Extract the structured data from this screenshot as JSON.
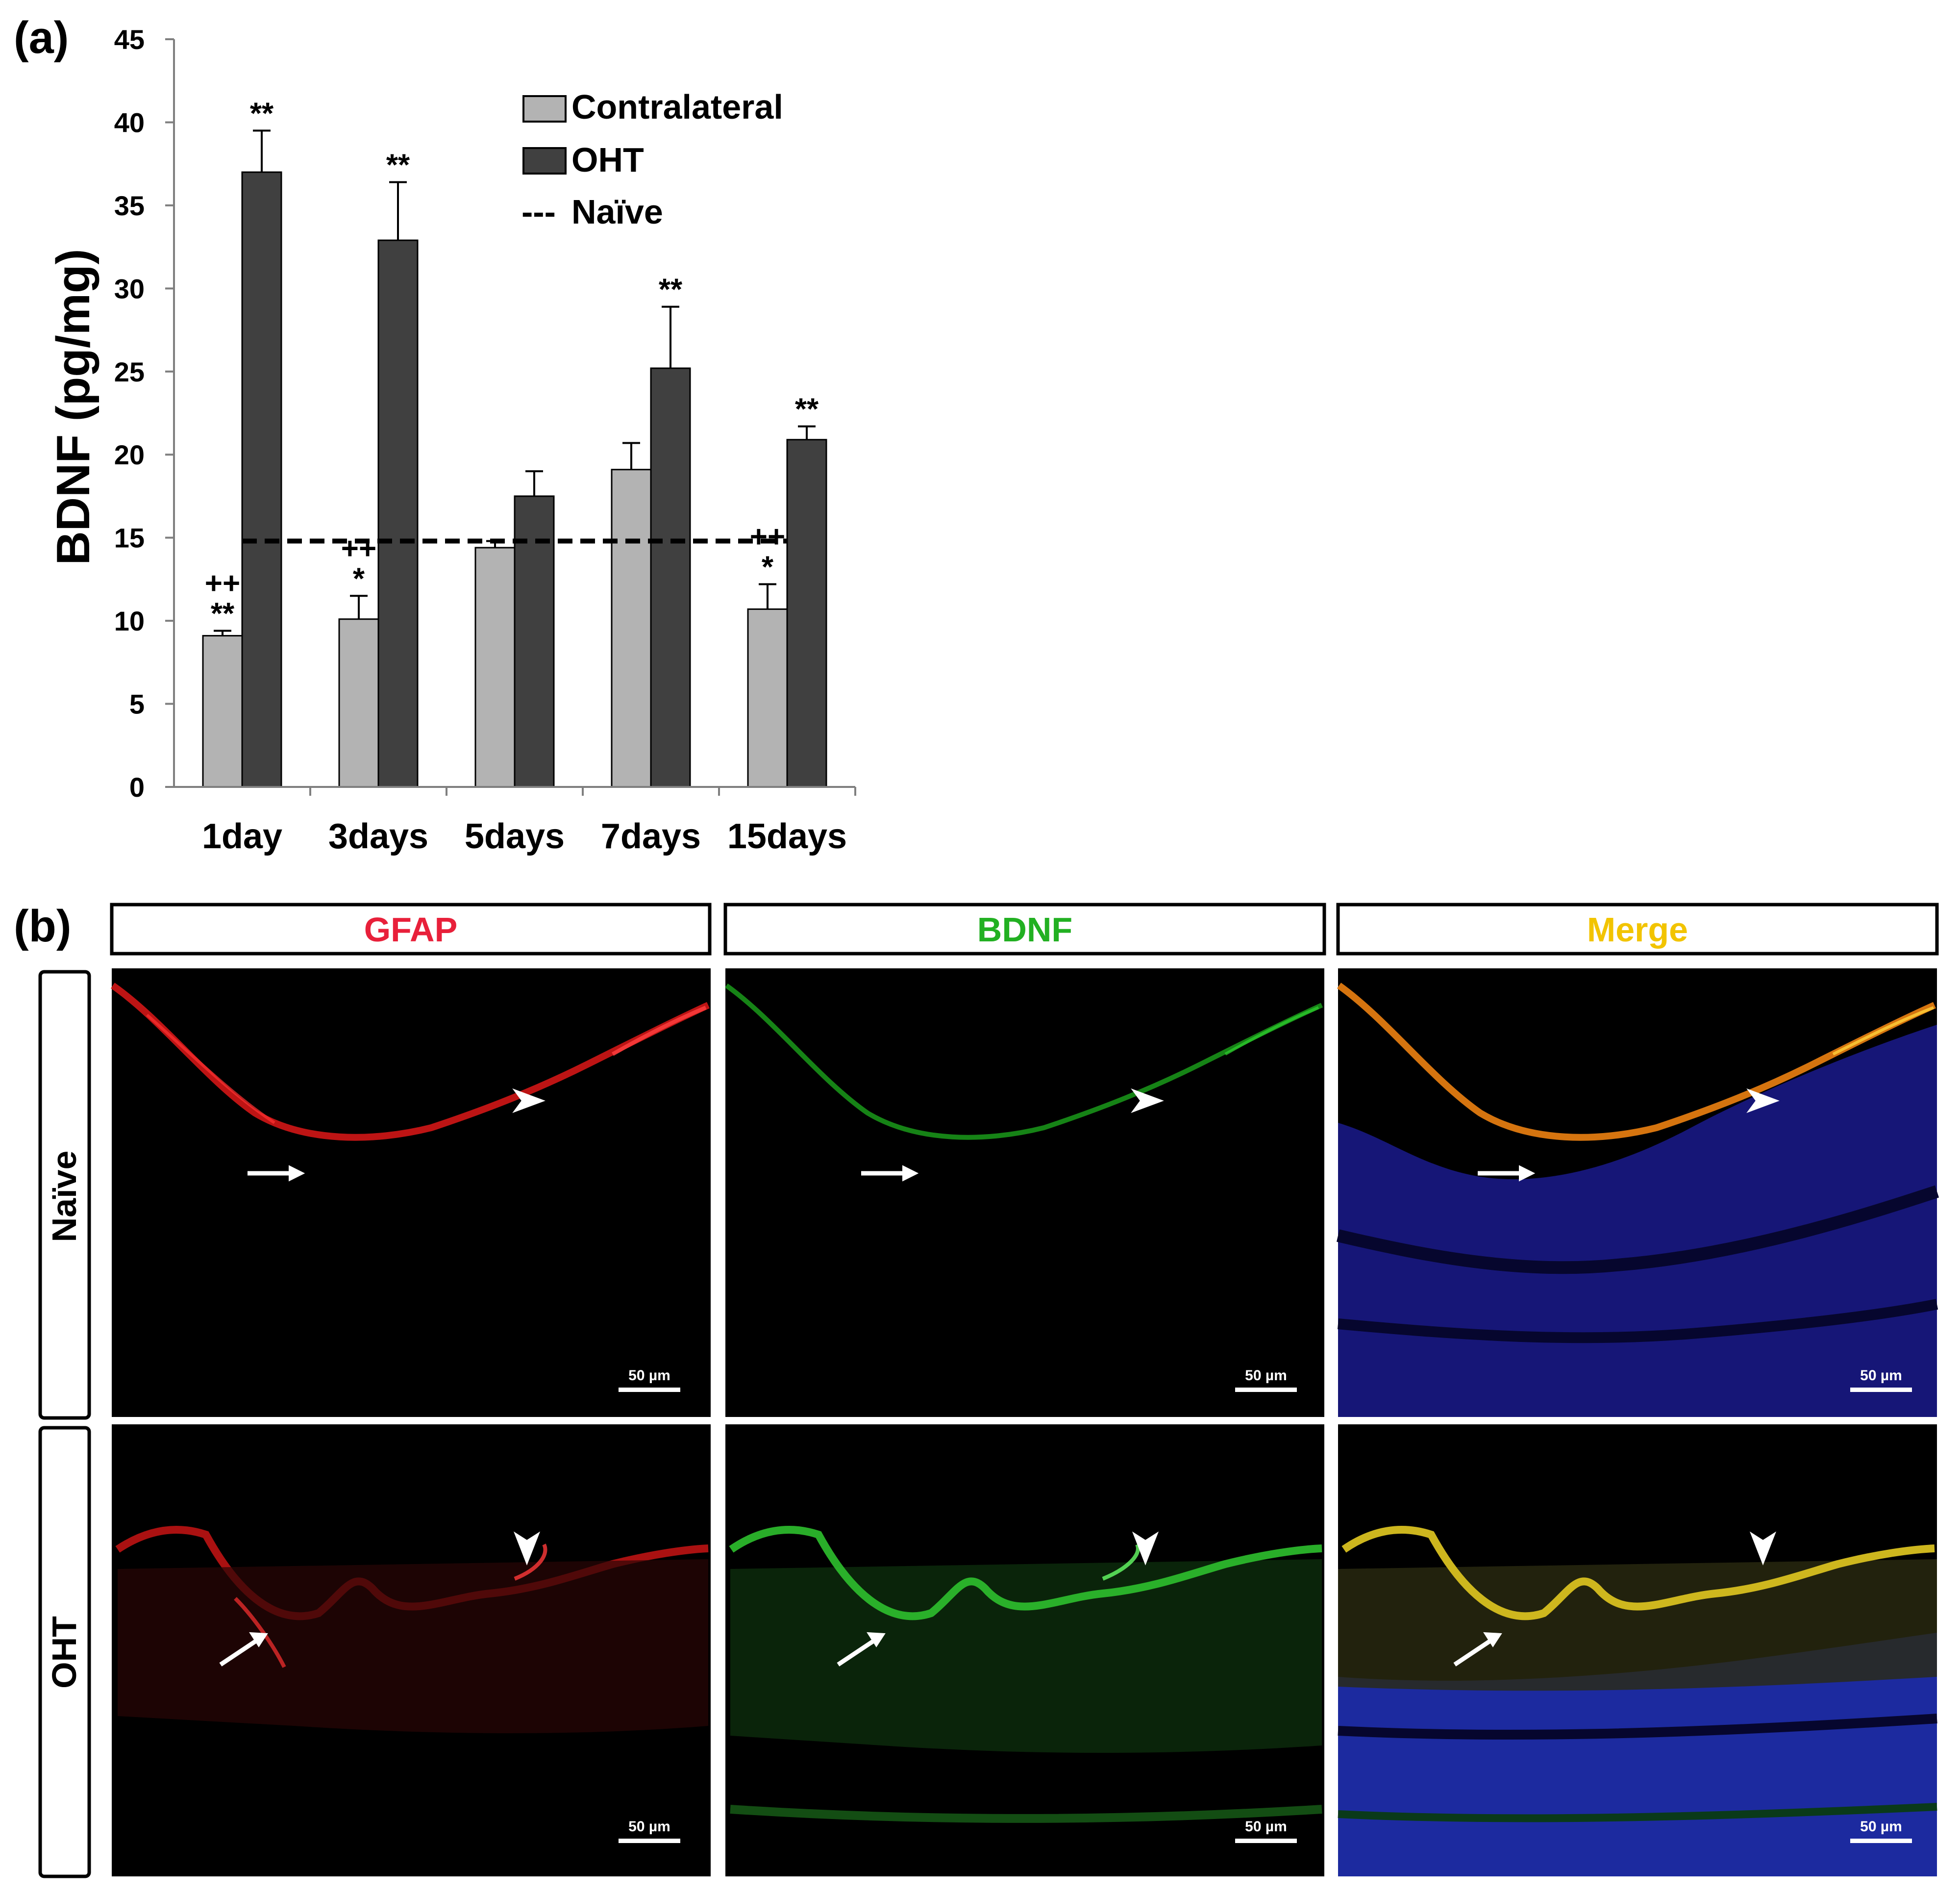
{
  "panel_a": {
    "label": "(a)",
    "chart_data": {
      "type": "bar",
      "title": "",
      "xlabel": "",
      "ylabel": "BDNF (pg/mg)",
      "ylim": [
        0,
        45
      ],
      "y_ticks": [
        "0",
        "5",
        "10",
        "15",
        "20",
        "25",
        "30",
        "35",
        "40",
        "45"
      ],
      "y_tick_values": [
        0,
        5,
        10,
        15,
        20,
        25,
        30,
        35,
        40,
        45
      ],
      "categories": [
        "1day",
        "3days",
        "5days",
        "7days",
        "15days"
      ],
      "series": [
        {
          "name": "Contralateral",
          "color": "#b3b3b3",
          "values": [
            9.1,
            10.1,
            14.4,
            19.1,
            10.7
          ],
          "errors": [
            0.3,
            1.4,
            0.4,
            1.6,
            1.5
          ],
          "annotations": [
            [
              "++",
              "**"
            ],
            [
              "++",
              "*"
            ],
            [],
            [],
            [
              "++",
              "*"
            ]
          ]
        },
        {
          "name": "OHT",
          "color": "#404040",
          "values": [
            37.0,
            32.9,
            17.5,
            25.2,
            20.9
          ],
          "errors": [
            2.5,
            3.5,
            1.5,
            3.7,
            0.8
          ],
          "annotations": [
            [
              "**"
            ],
            [
              "**"
            ],
            [],
            [
              "**"
            ],
            [
              "**"
            ]
          ]
        }
      ],
      "reference_line": {
        "name": "Naïve",
        "value": 14.8,
        "style": "dashed",
        "color": "#000000"
      },
      "legend": {
        "placement": "top-right",
        "entries": [
          "Contralateral",
          "OHT",
          "Naïve"
        ],
        "naive_dash_text": "---"
      },
      "grid": false
    }
  },
  "panel_b": {
    "label": "(b)",
    "column_headers": [
      {
        "text": "GFAP",
        "color": "#e8203a"
      },
      {
        "text": "BDNF",
        "color": "#22b022"
      },
      {
        "text": "Merge",
        "color": "#f2c400"
      }
    ],
    "row_labels": [
      "Naïve",
      "OHT"
    ],
    "scale_bar_text": "50 µm",
    "images": [
      {
        "row": "Naïve",
        "column": "GFAP"
      },
      {
        "row": "Naïve",
        "column": "BDNF"
      },
      {
        "row": "Naïve",
        "column": "Merge"
      },
      {
        "row": "OHT",
        "column": "GFAP"
      },
      {
        "row": "OHT",
        "column": "BDNF"
      },
      {
        "row": "OHT",
        "column": "Merge"
      }
    ]
  }
}
